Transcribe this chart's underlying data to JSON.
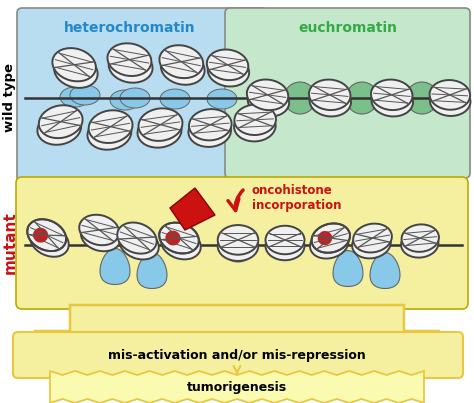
{
  "heterochromatin_label": "heterochromatin",
  "euchromatin_label": "euchromatin",
  "wild_type_label": "wild type",
  "mutant_label": "mutant",
  "oncohistone_label": "oncohistone\nincorporation",
  "mis_activation_label": "mis-activation and/or mis-repression",
  "tumorigenesis_label": "tumorigenesis",
  "colors": {
    "hetero_bg": "#b8ddf0",
    "eu_bg": "#c5e8cc",
    "mutant_bg": "#f5f0a0",
    "nucleosome_face": "#f0f0f0",
    "nucleosome_edge": "#444444",
    "nucleosome_line": "#555555",
    "blue_tail": "#88c8e8",
    "green_tail": "#7bbf8a",
    "red_onco": "#cc1111",
    "yellow_arrow": "#e8c840",
    "yellow_fill": "#f5f0a0",
    "border_dark": "#666666",
    "red_label": "#cc1111",
    "dna_line": "#333333",
    "dark_red": "#880000"
  }
}
